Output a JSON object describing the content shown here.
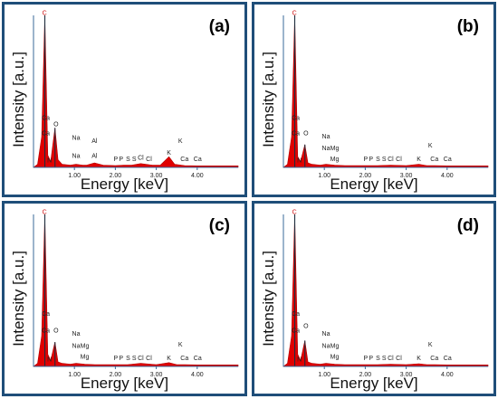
{
  "chart_data": [
    {
      "type": "line",
      "panel_label": "(a)",
      "xlabel": "Energy [keV]",
      "ylabel": "Intensity [a.u.]",
      "xlim": [
        0,
        5.0
      ],
      "ylim": [
        0,
        100
      ],
      "x_ticks": [
        "1.00",
        "2.00",
        "3.00",
        "4.00"
      ],
      "x_tick_values": [
        1,
        2,
        3,
        4
      ],
      "color": "#e00000",
      "series": [
        {
          "x": [
            0,
            0.1,
            0.2,
            0.277,
            0.35,
            0.42,
            0.525,
            0.6,
            0.7,
            0.9,
            1.04,
            1.2,
            1.3,
            1.49,
            1.7,
            2.0,
            2.2,
            2.4,
            2.62,
            2.9,
            3.1,
            3.31,
            3.45,
            3.69,
            4.0,
            4.5,
            5.0
          ],
          "y": [
            0,
            2,
            20,
            100,
            8,
            4,
            26,
            5,
            2,
            1.5,
            2,
            1.5,
            1.5,
            3,
            1.5,
            1.2,
            1.5,
            1.5,
            2.5,
            1.5,
            1.5,
            7,
            2,
            1.2,
            1,
            1,
            1
          ]
        }
      ],
      "annotations": [
        {
          "text": "C",
          "x": 0.27,
          "level": 99
        },
        {
          "text": "Ca",
          "x": 0.3,
          "level": 30
        },
        {
          "text": "Ca",
          "x": 0.3,
          "level": 20
        },
        {
          "text": "O",
          "x": 0.55,
          "level": 26
        },
        {
          "text": "N",
          "x": 0.39,
          "level": 2
        },
        {
          "text": "Na",
          "x": 1.04,
          "level": 17
        },
        {
          "text": "Na",
          "x": 1.04,
          "level": 5
        },
        {
          "text": "Al",
          "x": 1.49,
          "level": 15
        },
        {
          "text": "Al",
          "x": 1.49,
          "level": 5
        },
        {
          "text": "P",
          "x": 2.01,
          "level": 3
        },
        {
          "text": "P",
          "x": 2.14,
          "level": 3
        },
        {
          "text": "S",
          "x": 2.31,
          "level": 3
        },
        {
          "text": "S",
          "x": 2.46,
          "level": 3
        },
        {
          "text": "Cl",
          "x": 2.62,
          "level": 4
        },
        {
          "text": "Cl",
          "x": 2.82,
          "level": 3
        },
        {
          "text": "K",
          "x": 3.31,
          "level": 7
        },
        {
          "text": "K",
          "x": 3.59,
          "level": 15
        },
        {
          "text": "Ca",
          "x": 3.69,
          "level": 3
        },
        {
          "text": "Ca",
          "x": 4.01,
          "level": 3
        }
      ]
    },
    {
      "type": "line",
      "panel_label": "(b)",
      "xlabel": "Energy [keV]",
      "ylabel": "Intensity [a.u.]",
      "xlim": [
        0,
        5.0
      ],
      "ylim": [
        0,
        100
      ],
      "x_ticks": [
        "1.00",
        "2.00",
        "3.00",
        "4.00"
      ],
      "x_tick_values": [
        1,
        2,
        3,
        4
      ],
      "color": "#e00000",
      "series": [
        {
          "x": [
            0,
            0.1,
            0.2,
            0.277,
            0.35,
            0.42,
            0.525,
            0.6,
            0.7,
            0.9,
            1.04,
            1.25,
            1.5,
            2.0,
            2.3,
            2.62,
            3.0,
            3.31,
            3.5,
            3.69,
            4.0,
            4.5,
            5.0
          ],
          "y": [
            0,
            2,
            20,
            100,
            7,
            4,
            15,
            3,
            2,
            1.5,
            2,
            1.5,
            1.2,
            1.2,
            1.2,
            1.5,
            1.2,
            2,
            1.2,
            1.2,
            1,
            1,
            1
          ]
        }
      ],
      "annotations": [
        {
          "text": "C",
          "x": 0.27,
          "level": 99
        },
        {
          "text": "Ca",
          "x": 0.3,
          "level": 30
        },
        {
          "text": "Ca",
          "x": 0.3,
          "level": 20
        },
        {
          "text": "O",
          "x": 0.55,
          "level": 20
        },
        {
          "text": "N",
          "x": 0.39,
          "level": 2
        },
        {
          "text": "Na",
          "x": 1.04,
          "level": 18
        },
        {
          "text": "Na",
          "x": 1.04,
          "level": 10
        },
        {
          "text": "Mg",
          "x": 1.25,
          "level": 10
        },
        {
          "text": "Mg",
          "x": 1.25,
          "level": 3
        },
        {
          "text": "P",
          "x": 2.01,
          "level": 3
        },
        {
          "text": "P",
          "x": 2.14,
          "level": 3
        },
        {
          "text": "S",
          "x": 2.31,
          "level": 3
        },
        {
          "text": "S",
          "x": 2.46,
          "level": 3
        },
        {
          "text": "Cl",
          "x": 2.62,
          "level": 3
        },
        {
          "text": "Cl",
          "x": 2.82,
          "level": 3
        },
        {
          "text": "K",
          "x": 3.31,
          "level": 3
        },
        {
          "text": "K",
          "x": 3.59,
          "level": 12
        },
        {
          "text": "Ca",
          "x": 3.69,
          "level": 3
        },
        {
          "text": "Ca",
          "x": 4.01,
          "level": 3
        }
      ]
    },
    {
      "type": "line",
      "panel_label": "(c)",
      "xlabel": "Energy [keV]",
      "ylabel": "Intensity [a.u.]",
      "xlim": [
        0,
        5.0
      ],
      "ylim": [
        0,
        100
      ],
      "x_ticks": [
        "1.00",
        "2.00",
        "3.00",
        "4.00"
      ],
      "x_tick_values": [
        1,
        2,
        3,
        4
      ],
      "color": "#e00000",
      "series": [
        {
          "x": [
            0,
            0.1,
            0.2,
            0.277,
            0.35,
            0.42,
            0.525,
            0.6,
            0.7,
            0.9,
            1.04,
            1.25,
            1.5,
            2.0,
            2.3,
            2.62,
            3.0,
            3.31,
            3.5,
            3.69,
            4.0,
            4.5,
            5.0
          ],
          "y": [
            0,
            2,
            20,
            100,
            8,
            4,
            16,
            3,
            2,
            1.5,
            2,
            1.5,
            1.2,
            1.2,
            1.2,
            2,
            1.2,
            2.5,
            1.2,
            1.2,
            1,
            1,
            1
          ]
        }
      ],
      "annotations": [
        {
          "text": "C",
          "x": 0.27,
          "level": 99
        },
        {
          "text": "Ca",
          "x": 0.3,
          "level": 32
        },
        {
          "text": "Ca",
          "x": 0.3,
          "level": 21
        },
        {
          "text": "O",
          "x": 0.55,
          "level": 21
        },
        {
          "text": "N",
          "x": 0.39,
          "level": 2
        },
        {
          "text": "Na",
          "x": 1.04,
          "level": 19
        },
        {
          "text": "Na",
          "x": 1.04,
          "level": 11
        },
        {
          "text": "Mg",
          "x": 1.25,
          "level": 11
        },
        {
          "text": "Mg",
          "x": 1.25,
          "level": 4
        },
        {
          "text": "P",
          "x": 2.01,
          "level": 3
        },
        {
          "text": "P",
          "x": 2.14,
          "level": 3
        },
        {
          "text": "S",
          "x": 2.31,
          "level": 3
        },
        {
          "text": "S",
          "x": 2.46,
          "level": 3
        },
        {
          "text": "Cl",
          "x": 2.62,
          "level": 3
        },
        {
          "text": "Cl",
          "x": 2.82,
          "level": 3
        },
        {
          "text": "K",
          "x": 3.31,
          "level": 3
        },
        {
          "text": "K",
          "x": 3.59,
          "level": 12
        },
        {
          "text": "Ca",
          "x": 3.69,
          "level": 3
        },
        {
          "text": "Ca",
          "x": 4.01,
          "level": 3
        }
      ]
    },
    {
      "type": "line",
      "panel_label": "(d)",
      "xlabel": "Energy [keV]",
      "ylabel": "Intensity [a.u.]",
      "xlim": [
        0,
        5.0
      ],
      "ylim": [
        0,
        100
      ],
      "x_ticks": [
        "1.00",
        "2.00",
        "3.00",
        "4.00"
      ],
      "x_tick_values": [
        1,
        2,
        3,
        4
      ],
      "color": "#e00000",
      "series": [
        {
          "x": [
            0,
            0.1,
            0.2,
            0.277,
            0.35,
            0.42,
            0.525,
            0.6,
            0.7,
            0.9,
            1.04,
            1.25,
            1.5,
            2.0,
            2.3,
            2.62,
            3.0,
            3.31,
            3.5,
            3.69,
            4.0,
            4.5,
            5.0
          ],
          "y": [
            0,
            2,
            20,
            100,
            8,
            4,
            17,
            3,
            2,
            1.5,
            2,
            1.5,
            1.2,
            1.2,
            1.2,
            1.5,
            1.2,
            1.8,
            1.2,
            1.2,
            1,
            1,
            1
          ]
        }
      ],
      "annotations": [
        {
          "text": "C",
          "x": 0.27,
          "level": 99
        },
        {
          "text": "Ca",
          "x": 0.3,
          "level": 32
        },
        {
          "text": "Ca",
          "x": 0.3,
          "level": 21
        },
        {
          "text": "O",
          "x": 0.55,
          "level": 24
        },
        {
          "text": "N",
          "x": 0.39,
          "level": 2
        },
        {
          "text": "Na",
          "x": 1.04,
          "level": 19
        },
        {
          "text": "Na",
          "x": 1.04,
          "level": 11
        },
        {
          "text": "Mg",
          "x": 1.25,
          "level": 11
        },
        {
          "text": "Mg",
          "x": 1.25,
          "level": 4
        },
        {
          "text": "P",
          "x": 2.01,
          "level": 3
        },
        {
          "text": "P",
          "x": 2.14,
          "level": 3
        },
        {
          "text": "S",
          "x": 2.31,
          "level": 3
        },
        {
          "text": "S",
          "x": 2.46,
          "level": 3
        },
        {
          "text": "Cl",
          "x": 2.62,
          "level": 3
        },
        {
          "text": "Cl",
          "x": 2.82,
          "level": 3
        },
        {
          "text": "K",
          "x": 3.31,
          "level": 3
        },
        {
          "text": "K",
          "x": 3.59,
          "level": 12
        },
        {
          "text": "Ca",
          "x": 3.69,
          "level": 3
        },
        {
          "text": "Ca",
          "x": 4.01,
          "level": 3
        }
      ]
    }
  ]
}
